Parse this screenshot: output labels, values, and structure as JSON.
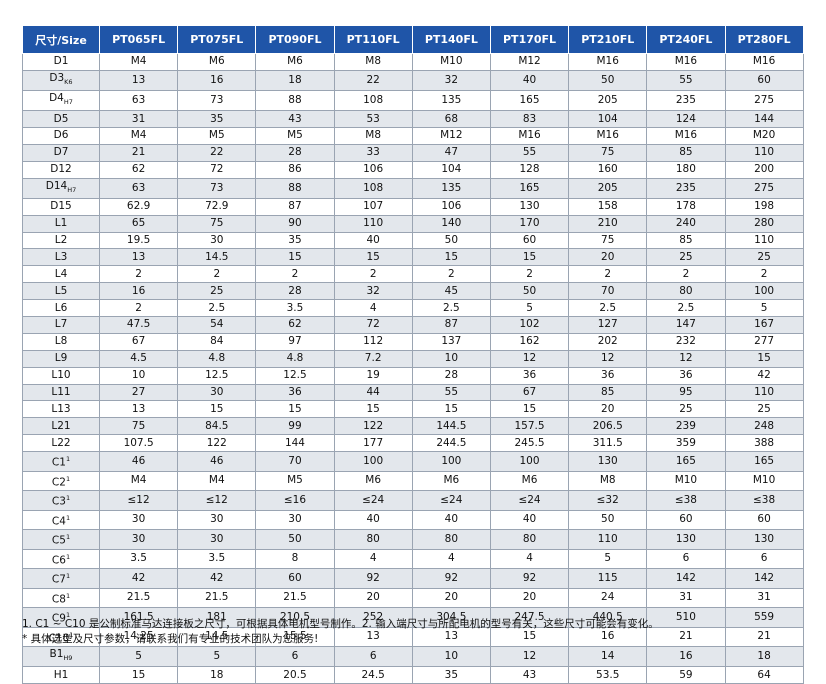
{
  "table": {
    "headers": [
      "尺寸/Size",
      "PT065FL",
      "PT075FL",
      "PT090FL",
      "PT110FL",
      "PT140FL",
      "PT170FL",
      "PT210FL",
      "PT240FL",
      "PT280FL"
    ],
    "rows": [
      {
        "label": "D1",
        "suffix": "",
        "values": [
          "M4",
          "M6",
          "M6",
          "M8",
          "M10",
          "M12",
          "M16",
          "M16",
          "M16"
        ]
      },
      {
        "label": "D3",
        "suffix": "K6",
        "values": [
          "13",
          "16",
          "18",
          "22",
          "32",
          "40",
          "50",
          "55",
          "60"
        ]
      },
      {
        "label": "D4",
        "suffix": "H7",
        "values": [
          "63",
          "73",
          "88",
          "108",
          "135",
          "165",
          "205",
          "235",
          "275"
        ]
      },
      {
        "label": "D5",
        "suffix": "",
        "values": [
          "31",
          "35",
          "43",
          "53",
          "68",
          "83",
          "104",
          "124",
          "144"
        ]
      },
      {
        "label": "D6",
        "suffix": "",
        "values": [
          "M4",
          "M5",
          "M5",
          "M8",
          "M12",
          "M16",
          "M16",
          "M16",
          "M20"
        ]
      },
      {
        "label": "D7",
        "suffix": "",
        "values": [
          "21",
          "22",
          "28",
          "33",
          "47",
          "55",
          "75",
          "85",
          "110"
        ]
      },
      {
        "label": "D12",
        "suffix": "",
        "values": [
          "62",
          "72",
          "86",
          "106",
          "104",
          "128",
          "160",
          "180",
          "200"
        ]
      },
      {
        "label": "D14",
        "suffix": "H7",
        "values": [
          "63",
          "73",
          "88",
          "108",
          "135",
          "165",
          "205",
          "235",
          "275"
        ]
      },
      {
        "label": "D15",
        "suffix": "",
        "values": [
          "62.9",
          "72.9",
          "87",
          "107",
          "106",
          "130",
          "158",
          "178",
          "198"
        ]
      },
      {
        "label": "L1",
        "suffix": "",
        "values": [
          "65",
          "75",
          "90",
          "110",
          "140",
          "170",
          "210",
          "240",
          "280"
        ]
      },
      {
        "label": "L2",
        "suffix": "",
        "values": [
          "19.5",
          "30",
          "35",
          "40",
          "50",
          "60",
          "75",
          "85",
          "110"
        ]
      },
      {
        "label": "L3",
        "suffix": "",
        "values": [
          "13",
          "14.5",
          "15",
          "15",
          "15",
          "15",
          "20",
          "25",
          "25"
        ]
      },
      {
        "label": "L4",
        "suffix": "",
        "values": [
          "2",
          "2",
          "2",
          "2",
          "2",
          "2",
          "2",
          "2",
          "2"
        ]
      },
      {
        "label": "L5",
        "suffix": "",
        "values": [
          "16",
          "25",
          "28",
          "32",
          "45",
          "50",
          "70",
          "80",
          "100"
        ]
      },
      {
        "label": "L6",
        "suffix": "",
        "values": [
          "2",
          "2.5",
          "3.5",
          "4",
          "2.5",
          "5",
          "2.5",
          "2.5",
          "5"
        ]
      },
      {
        "label": "L7",
        "suffix": "",
        "values": [
          "47.5",
          "54",
          "62",
          "72",
          "87",
          "102",
          "127",
          "147",
          "167"
        ]
      },
      {
        "label": "L8",
        "suffix": "",
        "values": [
          "67",
          "84",
          "97",
          "112",
          "137",
          "162",
          "202",
          "232",
          "277"
        ]
      },
      {
        "label": "L9",
        "suffix": "",
        "values": [
          "4.5",
          "4.8",
          "4.8",
          "7.2",
          "10",
          "12",
          "12",
          "12",
          "15"
        ]
      },
      {
        "label": "L10",
        "suffix": "",
        "values": [
          "10",
          "12.5",
          "12.5",
          "19",
          "28",
          "36",
          "36",
          "36",
          "42"
        ]
      },
      {
        "label": "L11",
        "suffix": "",
        "values": [
          "27",
          "30",
          "36",
          "44",
          "55",
          "67",
          "85",
          "95",
          "110"
        ]
      },
      {
        "label": "L13",
        "suffix": "",
        "values": [
          "13",
          "15",
          "15",
          "15",
          "15",
          "15",
          "20",
          "25",
          "25"
        ]
      },
      {
        "label": "L21",
        "suffix": "",
        "values": [
          "75",
          "84.5",
          "99",
          "122",
          "144.5",
          "157.5",
          "206.5",
          "239",
          "248"
        ]
      },
      {
        "label": "L22",
        "suffix": "",
        "values": [
          "107.5",
          "122",
          "144",
          "177",
          "244.5",
          "245.5",
          "311.5",
          "359",
          "388"
        ]
      },
      {
        "label": "C1",
        "suffix": "1",
        "sup": true,
        "values": [
          "46",
          "46",
          "70",
          "100",
          "100",
          "100",
          "130",
          "165",
          "165"
        ]
      },
      {
        "label": "C2",
        "suffix": "1",
        "sup": true,
        "values": [
          "M4",
          "M4",
          "M5",
          "M6",
          "M6",
          "M6",
          "M8",
          "M10",
          "M10"
        ]
      },
      {
        "label": "C3",
        "suffix": "1",
        "sup": true,
        "values": [
          "≤12",
          "≤12",
          "≤16",
          "≤24",
          "≤24",
          "≤24",
          "≤32",
          "≤38",
          "≤38"
        ]
      },
      {
        "label": "C4",
        "suffix": "1",
        "sup": true,
        "values": [
          "30",
          "30",
          "30",
          "40",
          "40",
          "40",
          "50",
          "60",
          "60"
        ]
      },
      {
        "label": "C5",
        "suffix": "1",
        "sup": true,
        "values": [
          "30",
          "30",
          "50",
          "80",
          "80",
          "80",
          "110",
          "130",
          "130"
        ]
      },
      {
        "label": "C6",
        "suffix": "1",
        "sup": true,
        "values": [
          "3.5",
          "3.5",
          "8",
          "4",
          "4",
          "4",
          "5",
          "6",
          "6"
        ]
      },
      {
        "label": "C7",
        "suffix": "1",
        "sup": true,
        "values": [
          "42",
          "42",
          "60",
          "92",
          "92",
          "92",
          "115",
          "142",
          "142"
        ]
      },
      {
        "label": "C8",
        "suffix": "1",
        "sup": true,
        "values": [
          "21.5",
          "21.5",
          "21.5",
          "20",
          "20",
          "20",
          "24",
          "31",
          "31"
        ]
      },
      {
        "label": "C9",
        "suffix": "1",
        "sup": true,
        "values": [
          "161.5",
          "181",
          "210.5",
          "252",
          "304.5",
          "247.5",
          "440.5",
          "510",
          "559"
        ]
      },
      {
        "label": "C10",
        "suffix": "1",
        "sup": true,
        "values": [
          "14.25",
          "14.5",
          "15.5",
          "13",
          "13",
          "15",
          "16",
          "21",
          "21"
        ]
      },
      {
        "label": "B1",
        "suffix": "H9",
        "values": [
          "5",
          "5",
          "6",
          "6",
          "10",
          "12",
          "14",
          "16",
          "18"
        ]
      },
      {
        "label": "H1",
        "suffix": "",
        "values": [
          "15",
          "18",
          "20.5",
          "24.5",
          "35",
          "43",
          "53.5",
          "59",
          "64"
        ]
      }
    ]
  },
  "notes": {
    "line1": "1. C1 ~ C10 是公制标准马达连接板之尺寸，可根据具体电机型号制作。2. 输入端尺寸与所配电机的型号有关，这些尺寸可能会有变化。",
    "line2": "* 具体选型及尺寸参数，请联系我们有专业的技术团队为您服务!"
  },
  "colors": {
    "header_bg": "#1f55a8",
    "header_text": "#ffffff",
    "stripe_bg": "#e3e7ec",
    "grid": "#9aa4b2"
  }
}
